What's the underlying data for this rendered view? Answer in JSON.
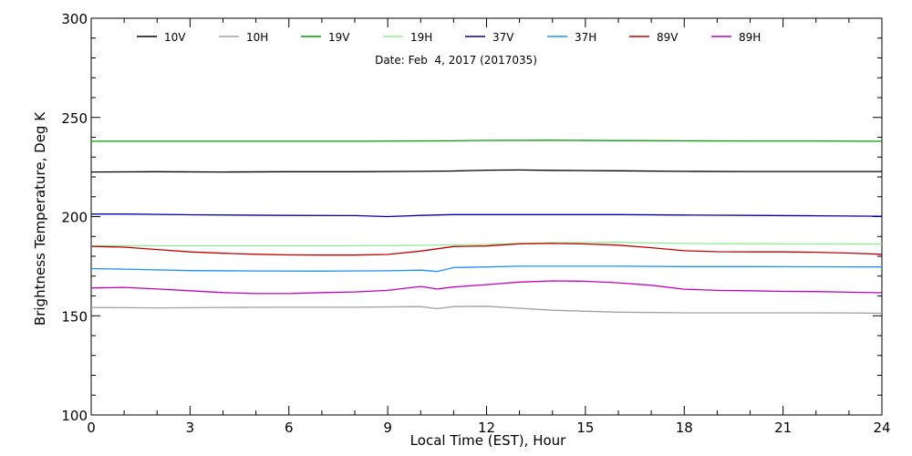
{
  "chart_data": {
    "type": "line",
    "title": "Date: Feb  4, 2017 (2017035)",
    "xlabel": "Local Time (EST), Hour",
    "ylabel": "Brightness Temperature, Deg K",
    "xlim": [
      0,
      24
    ],
    "ylim": [
      100,
      300
    ],
    "xticks": [
      0,
      3,
      6,
      9,
      12,
      15,
      18,
      21,
      24
    ],
    "yticks": [
      100,
      150,
      200,
      250,
      300
    ],
    "grid": false,
    "legend_position": "top",
    "series": [
      {
        "name": "10V",
        "color": "#000000",
        "x": [
          0,
          2,
          4,
          6,
          8,
          10,
          11,
          12,
          13,
          14,
          16,
          18,
          20,
          22,
          24
        ],
        "y": [
          222.5,
          222.6,
          222.5,
          222.6,
          222.6,
          222.8,
          223.0,
          223.4,
          223.5,
          223.3,
          223.1,
          222.8,
          222.7,
          222.7,
          222.7
        ]
      },
      {
        "name": "10H",
        "color": "#a0a0a0",
        "x": [
          0,
          2,
          4,
          6,
          8,
          10,
          10.5,
          11,
          12,
          13,
          14,
          16,
          18,
          20,
          22,
          24
        ],
        "y": [
          154.2,
          154.0,
          154.2,
          154.3,
          154.3,
          154.6,
          153.6,
          154.6,
          154.8,
          153.8,
          152.8,
          151.8,
          151.5,
          151.5,
          151.5,
          151.3
        ]
      },
      {
        "name": "19V",
        "color": "#00a000",
        "x": [
          0,
          4,
          8,
          11,
          12,
          14,
          16,
          18,
          20,
          22,
          24
        ],
        "y": [
          238.0,
          238.0,
          238.0,
          238.2,
          238.4,
          238.5,
          238.3,
          238.2,
          238.1,
          238.1,
          238.0
        ]
      },
      {
        "name": "19H",
        "color": "#90ee90",
        "x": [
          0,
          4,
          8,
          10,
          12,
          14,
          16,
          18,
          20,
          22,
          24
        ],
        "y": [
          185.3,
          185.3,
          185.3,
          185.5,
          186.0,
          186.8,
          187.0,
          186.5,
          186.3,
          186.2,
          186.1
        ]
      },
      {
        "name": "37V",
        "color": "#0000b0",
        "x": [
          0,
          1,
          3,
          6,
          8,
          9,
          10,
          11,
          12,
          14,
          16,
          18,
          20,
          22,
          24
        ],
        "y": [
          201.3,
          201.3,
          200.9,
          200.6,
          200.5,
          200.0,
          200.6,
          201.0,
          201.0,
          201.0,
          201.0,
          200.8,
          200.6,
          200.4,
          200.2
        ]
      },
      {
        "name": "37H",
        "color": "#1e90ff",
        "x": [
          0,
          1,
          3,
          5,
          7,
          9,
          10,
          10.5,
          11,
          12,
          13,
          14,
          16,
          18,
          20,
          22,
          24
        ],
        "y": [
          173.8,
          173.5,
          172.8,
          172.6,
          172.5,
          172.7,
          173.0,
          172.3,
          174.3,
          174.6,
          175.0,
          175.0,
          175.0,
          174.8,
          174.8,
          174.7,
          174.6
        ]
      },
      {
        "name": "89V",
        "color": "#c00000",
        "x": [
          0,
          1,
          2,
          3,
          4,
          5,
          6,
          7,
          8,
          9,
          10,
          11,
          12,
          13,
          14,
          15,
          16,
          17,
          18,
          19,
          20,
          21,
          22,
          23,
          24
        ],
        "y": [
          185.0,
          184.6,
          183.4,
          182.2,
          181.5,
          181.0,
          180.7,
          180.6,
          180.6,
          180.9,
          182.6,
          184.9,
          185.2,
          186.3,
          186.5,
          186.2,
          185.6,
          184.3,
          182.8,
          182.3,
          182.2,
          182.2,
          182.0,
          181.6,
          181.0
        ]
      },
      {
        "name": "89H",
        "color": "#c000c0",
        "x": [
          0,
          1,
          2,
          3,
          4,
          5,
          6,
          7,
          8,
          9,
          10,
          10.5,
          11,
          12,
          13,
          14,
          15,
          16,
          17,
          18,
          19,
          20,
          21,
          22,
          23,
          24
        ],
        "y": [
          164.0,
          164.3,
          163.5,
          162.6,
          161.7,
          161.2,
          161.2,
          161.7,
          162.0,
          162.8,
          164.8,
          163.5,
          164.5,
          165.7,
          167.0,
          167.6,
          167.4,
          166.6,
          165.4,
          163.4,
          162.8,
          162.6,
          162.3,
          162.2,
          161.9,
          161.6
        ]
      }
    ]
  }
}
